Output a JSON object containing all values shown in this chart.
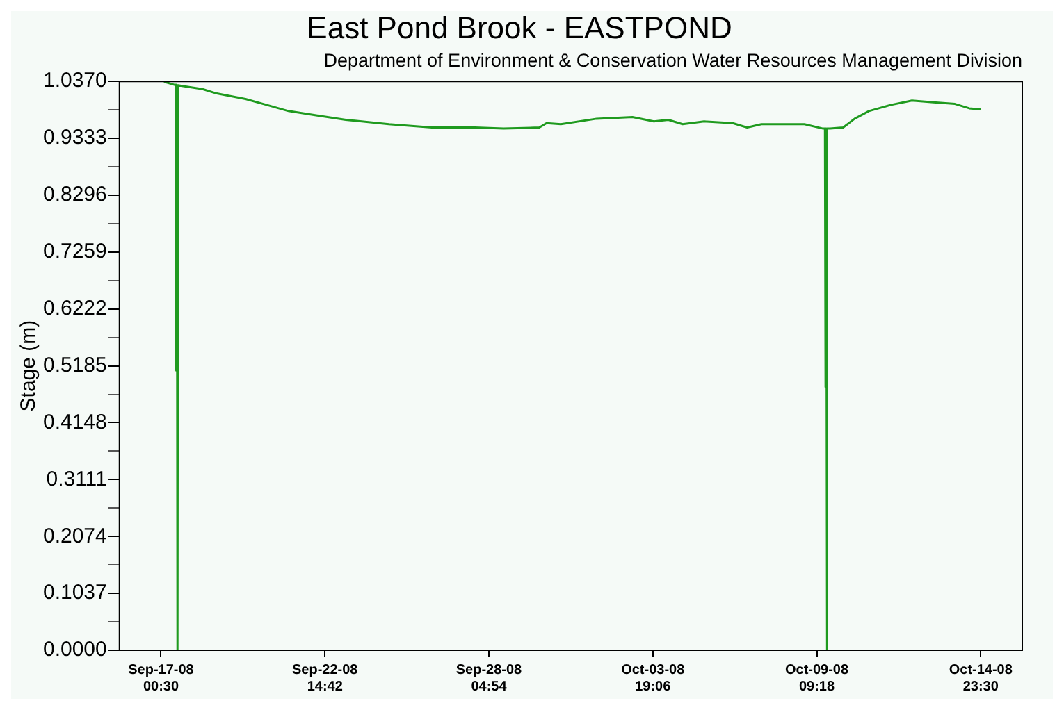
{
  "chart_data": {
    "type": "line",
    "title": "East Pond Brook - EASTPOND",
    "subtitle": "Department of Environment & Conservation Water Resources Management Division",
    "ylabel": "Stage (m)",
    "x": [
      "--09-17T03:00",
      "--09-17T05:12",
      "--09-17T11:06",
      "--09-17T12:30",
      "--09-17T13:00",
      "--09-17T13:30",
      "--09-17T14:00",
      "--09-17T14:30",
      "--09-17T16:54",
      "--09-18T10:30",
      "--09-18T22:12",
      "--09-19T21:42",
      "--09-20T15:18",
      "--09-21T08:54",
      "--09-22T08:24",
      "--09-23T07:48",
      "--09-24T19:00",
      "--09-26T06:12",
      "--09-27T17:24",
      "--09-28T16:54",
      "--09-29T22:12",
      "--09-30T04:06",
      "--09-30T15:48",
      "--10-01T21:06",
      "--10-03T02:24",
      "--10-03T20:00",
      "--10-04T07:48",
      "--10-04T19:30",
      "--10-05T13:06",
      "--10-06T12:30",
      "--10-07T00:18",
      "--10-07T12:00",
      "--10-08T23:12",
      "--10-09T14:30",
      "--10-09T16:00",
      "--10-09T16:30",
      "--10-09T17:00",
      "--10-09T17:30",
      "--10-09T18:00",
      "--10-09T20:18",
      "--10-10T06:54",
      "--10-10T16:18",
      "--10-11T04:00",
      "--10-11T21:36",
      "--10-12T15:12",
      "--10-13T08:48",
      "--10-14T02:24",
      "--10-14T14:06",
      "--10-14T23:30"
    ],
    "series": [
      {
        "color": "#1f9a1f",
        "values": [
          1.037,
          1.035,
          1.031,
          1.031,
          0.51,
          1.03,
          0,
          1.03,
          1.029,
          1.023,
          1.015,
          1.005,
          0.994,
          0.983,
          0.975,
          0.967,
          0.959,
          0.953,
          0.953,
          0.951,
          0.953,
          0.961,
          0.959,
          0.969,
          0.972,
          0.964,
          0.967,
          0.959,
          0.964,
          0.961,
          0.953,
          0.959,
          0.959,
          0.951,
          0.951,
          0.48,
          0.951,
          0,
          0.951,
          0.951,
          0.953,
          0.969,
          0.983,
          0.994,
          1.002,
          0.999,
          0.996,
          0.988,
          0.986
        ]
      }
    ],
    "xlim": [
      "--09-15T14:30",
      "--10-16T09:30"
    ],
    "xticks": [
      {
        "value": "--09-17T00:30",
        "label": "Sep-17-08 00:30"
      },
      {
        "value": "--09-22T14:42",
        "label": "Sep-22-08 14:42"
      },
      {
        "value": "--09-28T04:54",
        "label": "Sep-28-08 04:54"
      },
      {
        "value": "--10-03T19:06",
        "label": "Oct-03-08 19:06"
      },
      {
        "value": "--10-09T09:18",
        "label": "Oct-09-08 09:18"
      },
      {
        "value": "--10-14T23:30",
        "label": "Oct-14-08 23:30"
      }
    ],
    "ylim": [
      0,
      1.037
    ],
    "yticks": [
      {
        "value": 0,
        "label": "0.0000"
      },
      {
        "value": 0.05185,
        "label": null
      },
      0.1037,
      {
        "value": 0.15555,
        "label": null
      },
      0.2074,
      {
        "value": 0.25925,
        "label": null
      },
      0.3111,
      {
        "value": 0.36295,
        "label": null
      },
      0.4148,
      {
        "value": 0.46665,
        "label": null
      },
      0.5185,
      {
        "value": 0.57035,
        "label": null
      },
      0.6222,
      {
        "value": 0.67405,
        "label": null
      },
      0.7259,
      {
        "value": 0.77775,
        "label": null
      },
      0.8296,
      {
        "value": 0.88145,
        "label": null
      },
      0.9333,
      {
        "value": 0.98515,
        "label": null
      },
      {
        "value": 1.037,
        "label": "1.0370"
      }
    ],
    "legend": false,
    "marker": "none",
    "line_style": "solid"
  }
}
